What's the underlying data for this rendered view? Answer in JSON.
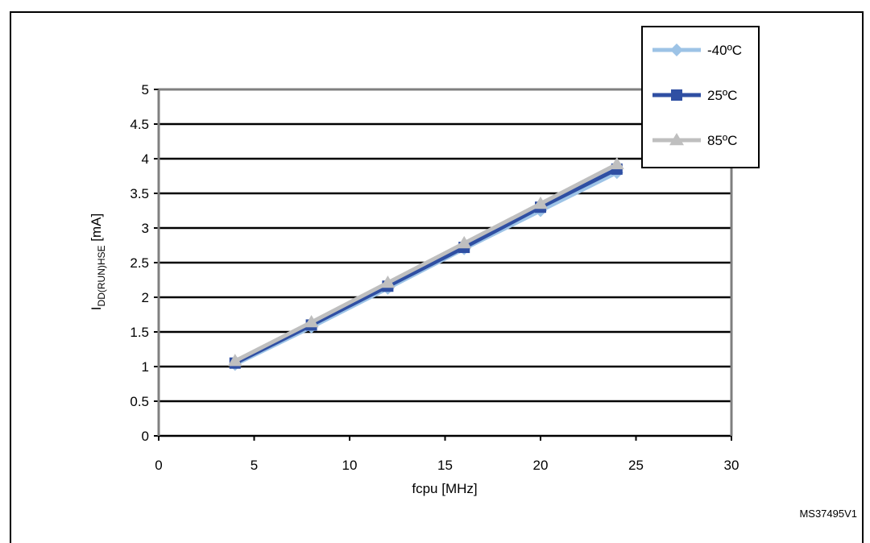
{
  "figure": {
    "title": "",
    "reference": "MS37495V1"
  },
  "chart_data": {
    "type": "line",
    "xlabel": "fcpu [MHz]",
    "ylabel_main": "I",
    "ylabel_sub": "DD(RUN)HSE",
    "ylabel_unit": " [mA]",
    "xlim": [
      0,
      30
    ],
    "ylim": [
      0,
      5
    ],
    "xticks": [
      "0",
      "5",
      "10",
      "15",
      "20",
      "25",
      "30"
    ],
    "yticks": [
      "0",
      "0.5",
      "1",
      "1.5",
      "2",
      "2.5",
      "3",
      "3.5",
      "4",
      "4.5",
      "5"
    ],
    "grid": "horizontal",
    "legend_position": "top-right",
    "x": [
      4,
      8,
      12,
      16,
      20,
      24
    ],
    "series": [
      {
        "name": "-40ºC",
        "values": [
          1.03,
          1.57,
          2.13,
          2.7,
          3.25,
          3.8
        ],
        "color": "#9dc3e6",
        "marker": "diamond"
      },
      {
        "name": "25ºC",
        "values": [
          1.05,
          1.6,
          2.16,
          2.72,
          3.3,
          3.85
        ],
        "color": "#2f4fa3",
        "marker": "square"
      },
      {
        "name": "85ºC",
        "values": [
          1.08,
          1.64,
          2.21,
          2.78,
          3.35,
          3.92
        ],
        "color": "#bfbfbf",
        "marker": "triangle"
      }
    ]
  }
}
